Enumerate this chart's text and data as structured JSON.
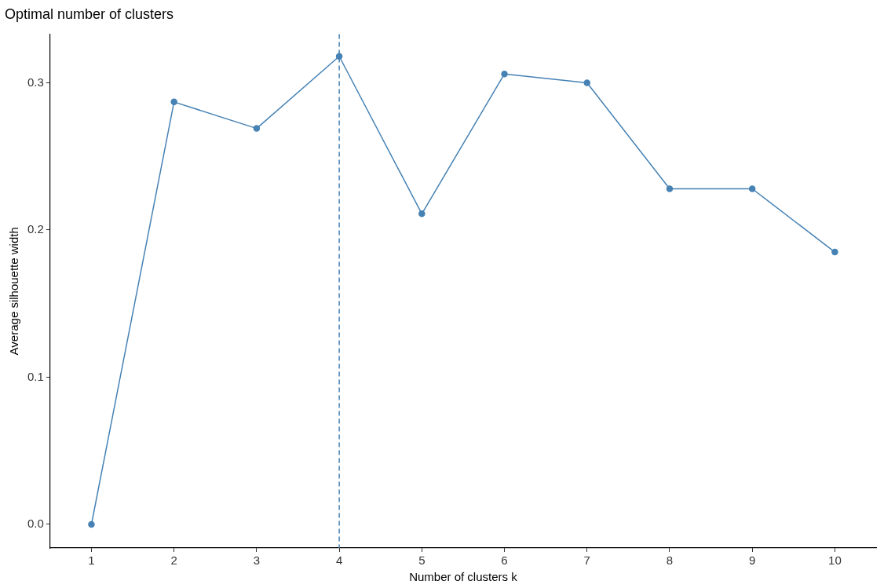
{
  "chart_data": {
    "type": "line",
    "title": "Optimal number of clusters",
    "xlabel": "Number of clusters k",
    "ylabel": "Average silhouette width",
    "categories": [
      "1",
      "2",
      "3",
      "4",
      "5",
      "6",
      "7",
      "8",
      "9",
      "10"
    ],
    "series": [
      {
        "color": "#4682b4",
        "values": [
          0,
          0.287,
          0.269,
          0.318,
          0.211,
          0.306,
          0.3,
          0.228,
          0.228,
          0.185
        ]
      }
    ],
    "ylim": [
      -0.016,
      0.333
    ],
    "yticks": [
      {
        "value": 0,
        "label": "0.0"
      },
      0.1,
      0.2,
      0.3
    ],
    "ref_lines": [
      {
        "axis": "x",
        "value": "4",
        "color": "#4682b4",
        "line_style": "dashed"
      }
    ],
    "grid": false,
    "legend": false,
    "marker": "circle",
    "line_style": "solid"
  }
}
